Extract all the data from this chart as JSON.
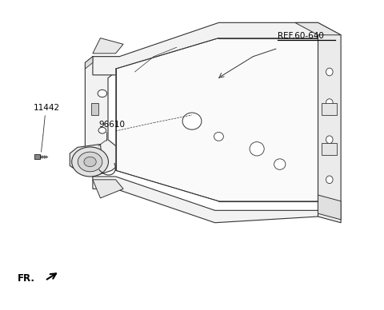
{
  "background_color": "#ffffff",
  "line_color": "#333333",
  "text_color": "#000000",
  "ref_label": "REF.60-640",
  "label_96610": "96610",
  "label_11442": "11442",
  "fr_label": "FR."
}
